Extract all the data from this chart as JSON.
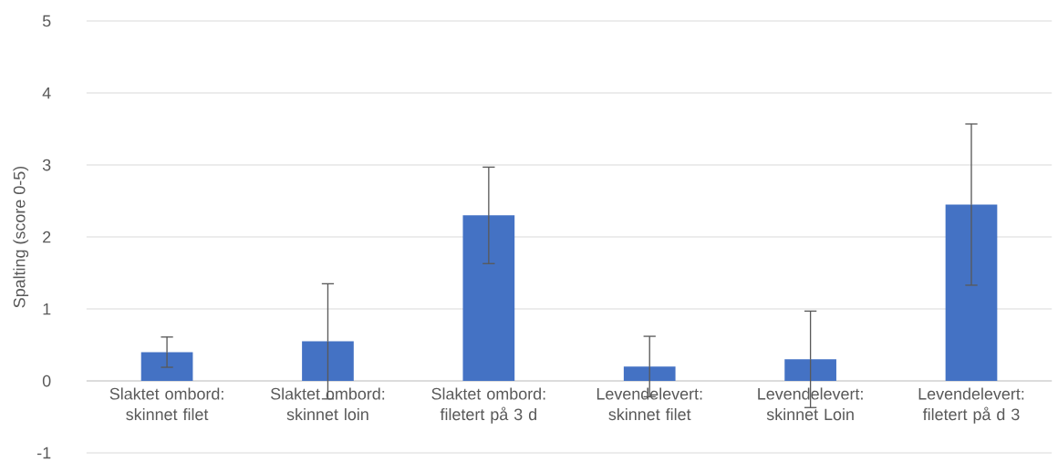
{
  "chart_data": {
    "type": "bar",
    "ylabel": "Spalting (score 0-5)",
    "categories": [
      "Slaktet ombord: skinnet filet",
      "Slaktet ombord: skinnet loin",
      "Slaktet ombord: filetert på 3 d",
      "Levendelevert: skinnet filet",
      "Levendelevert: skinnet Loin",
      "Levendelevert: filetert på d 3"
    ],
    "values": [
      0.4,
      0.55,
      2.3,
      0.2,
      0.3,
      2.45
    ],
    "errors": [
      0.21,
      0.8,
      0.67,
      0.42,
      0.67,
      1.12
    ],
    "color": "#4472c4",
    "ylim": [
      -1,
      5
    ],
    "yticks": [
      -1,
      0,
      1,
      2,
      3,
      4,
      5
    ],
    "grid": "y"
  }
}
